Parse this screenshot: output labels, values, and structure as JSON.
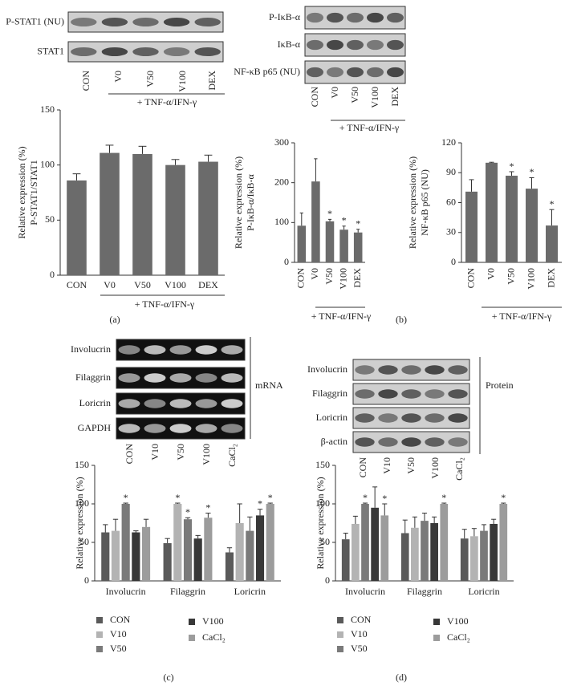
{
  "chart_data": [
    {
      "type": "bar",
      "categories": [
        "CON",
        "V0",
        "V50",
        "V100",
        "DEX"
      ],
      "values": [
        86,
        111,
        110,
        100,
        103
      ],
      "errors": [
        6,
        7,
        7,
        5,
        6
      ],
      "color": "#6b6b6b",
      "ylim": [
        0,
        150
      ],
      "yticks": [
        0,
        50,
        100,
        150
      ],
      "ylabel": [
        "Relative expression (%)",
        "P-STAT1/STAT1"
      ],
      "group_label": "+ TNF-α/IFN-γ"
    },
    {
      "type": "bar",
      "categories": [
        "CON",
        "V0",
        "V50",
        "V100",
        "DEX"
      ],
      "values": [
        92,
        203,
        103,
        82,
        75
      ],
      "errors": [
        32,
        57,
        5,
        9,
        8
      ],
      "labels": [
        null,
        null,
        "*",
        "*",
        "*"
      ],
      "color": "#6b6b6b",
      "ylim": [
        0,
        300
      ],
      "yticks": [
        0,
        100,
        200,
        300
      ],
      "ylabel": [
        "Relative expression (%)",
        "P-IκB-α/IκB-α"
      ],
      "group_label": "+ TNF-α/IFN-γ"
    },
    {
      "type": "bar",
      "categories": [
        "CON",
        "V0",
        "V50",
        "V100",
        "DEX"
      ],
      "values": [
        71,
        100,
        87,
        74,
        37
      ],
      "errors": [
        12,
        0.5,
        4,
        11,
        16
      ],
      "labels": [
        null,
        null,
        "*",
        "*",
        "*"
      ],
      "color": "#6b6b6b",
      "ylim": [
        0,
        120
      ],
      "yticks": [
        0,
        30,
        60,
        90,
        120
      ],
      "ylabel": [
        "Relative expression (%)",
        "NF-κB p65 (NU)"
      ],
      "group_label": "+ TNF-α/IFN-γ"
    },
    {
      "type": "grouped_bar",
      "categories": [
        "Involucrin",
        "Filaggrin",
        "Loricrin"
      ],
      "ylim": [
        0,
        150
      ],
      "yticks": [
        0,
        50,
        100,
        150
      ],
      "ylabel": "Relative expression (%)",
      "series": [
        {
          "name": "CON",
          "color": "#5a5a5a",
          "values": [
            63,
            49,
            37
          ],
          "errors": [
            10,
            6,
            6
          ],
          "labels": [
            null,
            null,
            null
          ]
        },
        {
          "name": "V10",
          "color": "#b3b3b3",
          "values": [
            65,
            100,
            75
          ],
          "errors": [
            15,
            1,
            25
          ],
          "labels": [
            null,
            "*",
            null
          ]
        },
        {
          "name": "V50",
          "color": "#7a7a7a",
          "values": [
            100,
            80,
            65
          ],
          "errors": [
            1,
            2,
            18
          ],
          "labels": [
            "*",
            "*",
            null
          ]
        },
        {
          "name": "V100",
          "color": "#383838",
          "values": [
            63,
            55,
            85
          ],
          "errors": [
            2,
            4,
            8
          ],
          "labels": [
            null,
            null,
            "*"
          ]
        },
        {
          "name": "CaCl₂",
          "color": "#9c9c9c",
          "values": [
            70,
            82,
            100
          ],
          "errors": [
            10,
            6,
            1
          ],
          "labels": [
            null,
            "*",
            "*"
          ]
        }
      ]
    },
    {
      "type": "grouped_bar",
      "categories": [
        "Involucrin",
        "Filaggrin",
        "Loricrin"
      ],
      "ylim": [
        0,
        150
      ],
      "yticks": [
        0,
        50,
        100,
        150
      ],
      "ylabel": "Relative expression (%)",
      "series": [
        {
          "name": "CON",
          "color": "#5a5a5a",
          "values": [
            54,
            62,
            55
          ],
          "errors": [
            8,
            17,
            12
          ],
          "labels": [
            null,
            null,
            null
          ]
        },
        {
          "name": "V10",
          "color": "#b3b3b3",
          "values": [
            74,
            69,
            58
          ],
          "errors": [
            10,
            14,
            10
          ],
          "labels": [
            null,
            null,
            null
          ]
        },
        {
          "name": "V50",
          "color": "#7a7a7a",
          "values": [
            100,
            78,
            65
          ],
          "errors": [
            1,
            10,
            8
          ],
          "labels": [
            "*",
            null,
            null
          ]
        },
        {
          "name": "V100",
          "color": "#383838",
          "values": [
            95,
            75,
            74
          ],
          "errors": [
            27,
            8,
            6
          ],
          "labels": [
            null,
            null,
            null
          ]
        },
        {
          "name": "CaCl₂",
          "color": "#9c9c9c",
          "values": [
            85,
            100,
            100
          ],
          "errors": [
            15,
            1,
            1
          ],
          "labels": [
            "*",
            "*",
            "*"
          ]
        }
      ]
    }
  ],
  "blots": [
    {
      "rows": [
        "P-STAT1 (NU)",
        "STAT1"
      ],
      "lanes": [
        "CON",
        "V0",
        "V50",
        "V100",
        "DEX"
      ],
      "group_label": "+ TNF-α/IFN-γ"
    },
    {
      "rows": [
        "P-IκB-α",
        "IκB-α",
        "NF-κB p65 (NU)"
      ],
      "lanes": [
        "CON",
        "V0",
        "V50",
        "V100",
        "DEX"
      ],
      "group_label": "+ TNF-α/IFN-γ"
    },
    {
      "rows": [
        "Involucrin",
        "Filaggrin",
        "Loricrin",
        "GAPDH"
      ],
      "lanes": [
        "CON",
        "V10",
        "V50",
        "V100",
        "CaCl₂"
      ],
      "tag": "mRNA"
    },
    {
      "rows": [
        "Involucrin",
        "Filaggrin",
        "Loricrin",
        "β-actin"
      ],
      "lanes": [
        "CON",
        "V10",
        "V50",
        "V100",
        "CaCl₂"
      ],
      "tag": "Protein"
    }
  ],
  "panels": [
    "(a)",
    "(b)",
    "(c)",
    "(d)"
  ]
}
